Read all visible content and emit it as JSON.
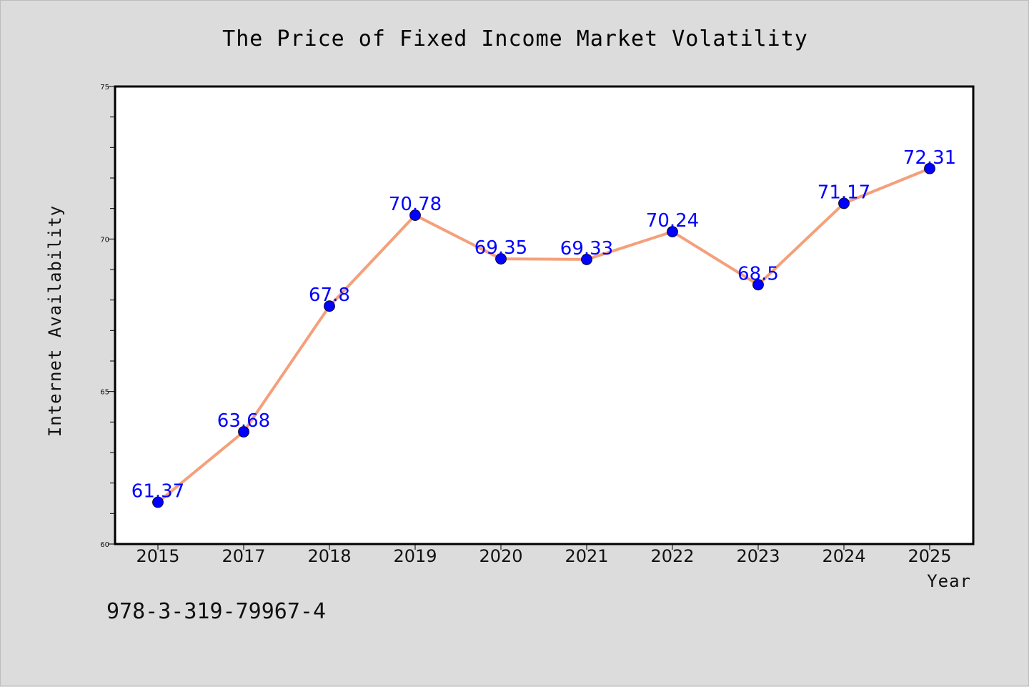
{
  "chart_data": {
    "type": "line",
    "title": "The Price of Fixed Income Market Volatility",
    "xlabel": "Year",
    "ylabel": "Internet Availability",
    "categories": [
      "2015",
      "2017",
      "2018",
      "2019",
      "2020",
      "2021",
      "2022",
      "2023",
      "2024",
      "2025"
    ],
    "series": [
      {
        "values": [
          61.37,
          63.68,
          67.8,
          70.78,
          69.35,
          69.33,
          70.24,
          68.5,
          71.17,
          72.31
        ],
        "labels": [
          "61.37",
          "63.68",
          "67.8",
          "70.78",
          "69.35",
          "69.33",
          "70.24",
          "68.5",
          "71.17",
          "72.31"
        ],
        "line_color": "#f4a07a",
        "marker_color": "#0000ff"
      }
    ],
    "ylim": [
      60,
      75
    ],
    "yticks": [
      "60",
      "65",
      "70",
      "75"
    ],
    "y_minor_step": 1,
    "grid": false,
    "legend": "none",
    "label_color": "#0000ff"
  },
  "footnote": "978-3-319-79967-4",
  "colors": {
    "background": "#dcdcdc",
    "plot_background": "#ffffff"
  }
}
